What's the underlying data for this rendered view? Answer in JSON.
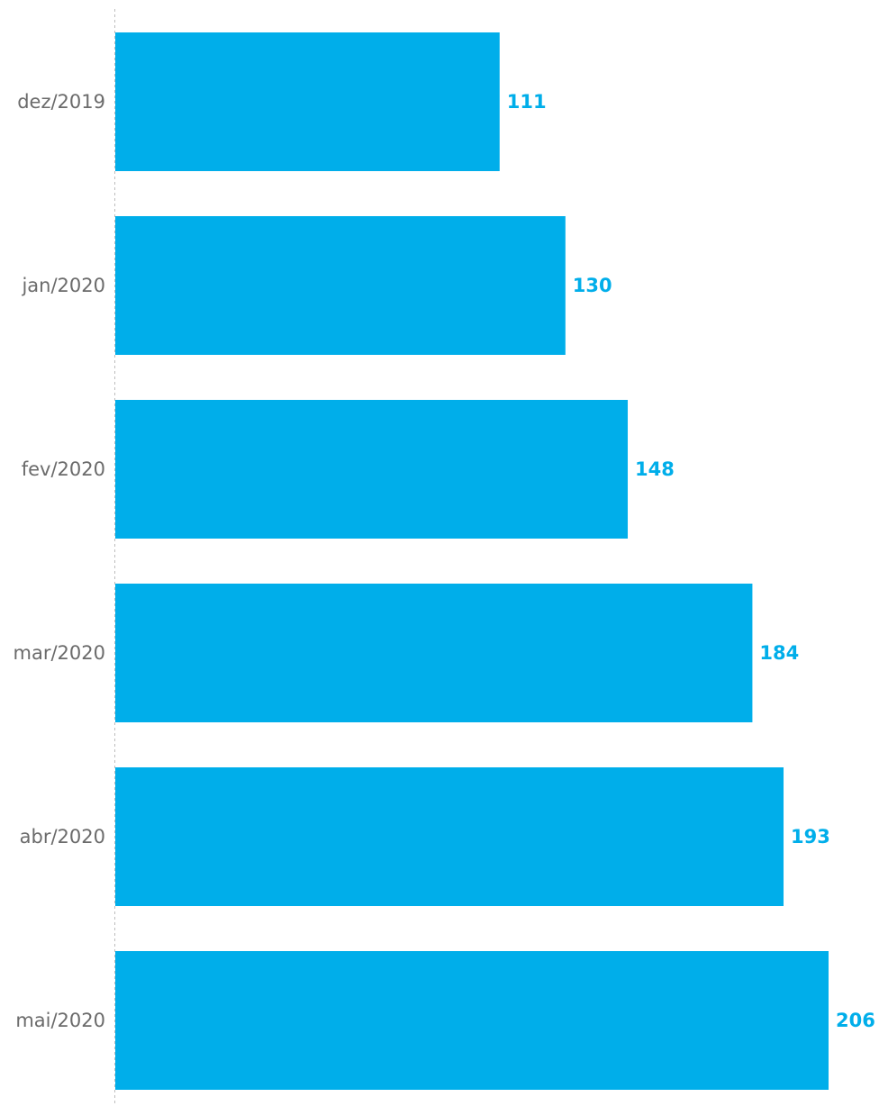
{
  "chart_data": {
    "type": "bar",
    "orientation": "horizontal",
    "categories": [
      "dez/2019",
      "jan/2020",
      "fev/2020",
      "mar/2020",
      "abr/2020",
      "mai/2020"
    ],
    "values": [
      111,
      130,
      148,
      184,
      193,
      206
    ],
    "data_labels": [
      "111",
      "130",
      "148",
      "184",
      "193",
      "206"
    ],
    "title": "",
    "xlabel": "",
    "ylabel": "",
    "xlim": [
      0,
      206
    ],
    "grid": false,
    "legend": "none",
    "colors": {
      "bar": "#00AEEA",
      "value_label": "#00AEEA",
      "category_label": "#6b6b6b",
      "baseline": "#bdbdbd"
    }
  }
}
